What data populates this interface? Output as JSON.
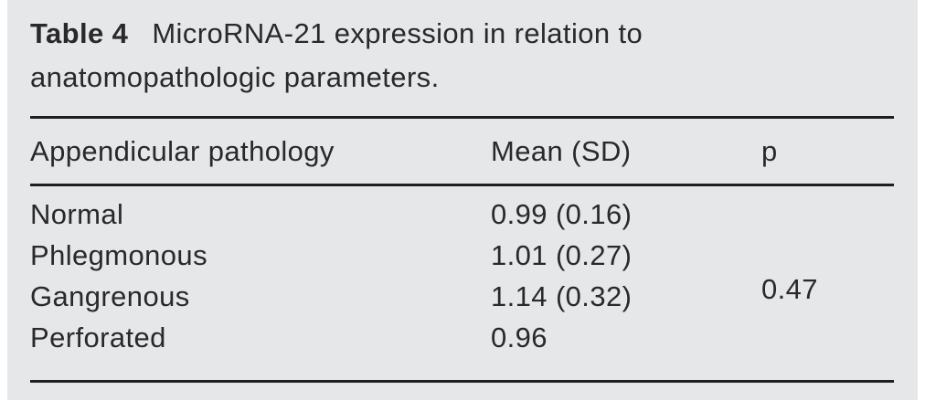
{
  "table": {
    "caption_label": "Table 4",
    "caption_line1": "MicroRNA-21 expression in relation to",
    "caption_line2": "anatomopathologic parameters.",
    "columns": [
      "Appendicular pathology",
      "Mean (SD)",
      "p"
    ],
    "rows": [
      {
        "pathology": "Normal",
        "mean_sd": "0.99 (0.16)"
      },
      {
        "pathology": "Phlegmonous",
        "mean_sd": "1.01 (0.27)"
      },
      {
        "pathology": "Gangrenous",
        "mean_sd": "1.14 (0.32)"
      },
      {
        "pathology": "Perforated",
        "mean_sd": "0.96"
      }
    ],
    "p_value": "0.47"
  },
  "colors": {
    "panel_background": "#e6e7e8",
    "text": "#29292b",
    "rule": "#1f1f1f",
    "page_background": "#ffffff"
  }
}
